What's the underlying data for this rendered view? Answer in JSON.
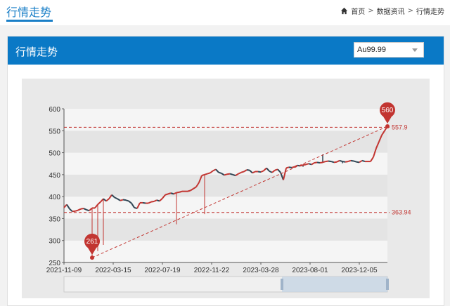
{
  "page": {
    "title": "行情走势"
  },
  "breadcrumb": {
    "items": [
      "首页",
      "数据资讯",
      "行情走势"
    ],
    "separator": ">"
  },
  "panel": {
    "title": "行情走势"
  },
  "select": {
    "value": "Au99.99"
  },
  "colors": {
    "accent": "#0a79c6",
    "up": "#c23531",
    "down": "#2f4554",
    "marker": "#c23531"
  },
  "chart_data": {
    "type": "line",
    "x_ticks": [
      "2021-11-09",
      "2022-03-15",
      "2022-07-19",
      "2022-11-22",
      "2023-03-28",
      "2023-08-01",
      "2023-12-05"
    ],
    "y_ticks": [
      250,
      300,
      350,
      400,
      450,
      500,
      550,
      600
    ],
    "ylim": [
      250,
      600
    ],
    "series": [
      {
        "x": [
          0,
          4,
          8,
          12,
          16,
          20,
          24,
          28,
          32,
          36,
          40,
          44,
          48,
          52,
          56,
          60,
          64,
          68,
          72,
          76,
          80,
          84,
          88,
          92,
          96,
          100,
          104,
          108,
          112,
          116,
          120,
          124,
          128,
          132,
          136,
          140,
          144,
          148,
          152,
          156,
          160,
          164,
          168,
          172,
          176,
          180,
          184,
          188,
          192,
          196,
          200,
          204,
          208,
          212,
          216,
          220,
          224,
          228,
          232,
          236,
          240,
          244,
          248,
          252,
          256,
          260,
          264,
          268,
          272,
          276,
          280,
          284,
          288,
          292,
          296,
          300,
          304,
          308,
          312,
          316,
          320,
          324,
          328,
          332,
          336,
          340,
          344,
          348,
          352,
          356,
          360,
          364,
          368,
          372,
          376,
          380,
          384,
          388,
          392,
          396,
          400,
          404,
          408,
          412,
          416,
          420,
          424,
          428,
          432,
          436,
          440,
          444,
          448,
          452,
          456,
          460
        ],
        "values": [
          375,
          382,
          372,
          366,
          367,
          369,
          372,
          373,
          370,
          368,
          374,
          374,
          382,
          388,
          395,
          390,
          395,
          404,
          398,
          395,
          391,
          393,
          392,
          390,
          385,
          375,
          373,
          386,
          386,
          385,
          385,
          388,
          389,
          392,
          390,
          396,
          404,
          406,
          408,
          406,
          409,
          410,
          412,
          412,
          412,
          414,
          418,
          422,
          432,
          448,
          450,
          452,
          454,
          459,
          462,
          455,
          453,
          449,
          451,
          452,
          450,
          448,
          452,
          455,
          457,
          461,
          460,
          454,
          457,
          457,
          456,
          459,
          465,
          458,
          455,
          460,
          462,
          455,
          438,
          465,
          467,
          466,
          468,
          471,
          470,
          472,
          473,
          475,
          473,
          477,
          478,
          477,
          478,
          480,
          481,
          480,
          478,
          479,
          482,
          480,
          479,
          480,
          482,
          481,
          479,
          478,
          482,
          480,
          480,
          480,
          490,
          510,
          525,
          540,
          550,
          560
        ]
      }
    ],
    "markers": {
      "max": {
        "value": 560,
        "label": "560"
      },
      "min": {
        "value": 261,
        "label": "261"
      }
    },
    "reference_lines": [
      {
        "label": "557.9",
        "value": 557.9
      },
      {
        "label": "363.94",
        "value": 363.94
      }
    ],
    "spikes_low": [
      {
        "x_index": 10,
        "value": 262
      },
      {
        "x_index": 12,
        "value": 276
      },
      {
        "x_index": 14,
        "value": 290
      },
      {
        "x_index": 40,
        "value": 337
      },
      {
        "x_index": 50,
        "value": 360
      }
    ],
    "spikes_high": [
      {
        "x_index": 85,
        "value": 468
      },
      {
        "x_index": 92,
        "value": 496
      },
      {
        "x_index": 99,
        "value": 476
      }
    ],
    "grid": true
  }
}
